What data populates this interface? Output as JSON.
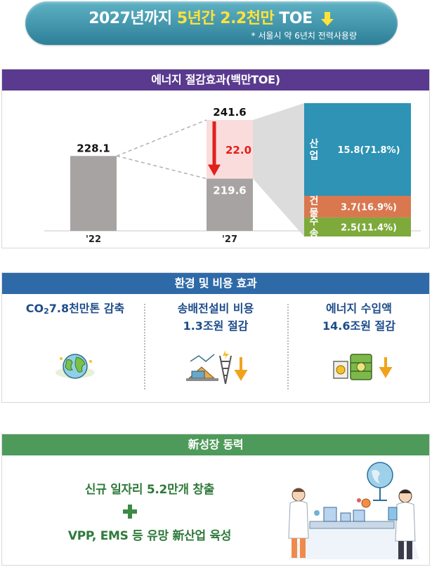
{
  "banner": {
    "title_prefix": "2027년까지",
    "title_highlight": "5년간 2.2천만",
    "title_unit": "TOE",
    "note": "* 서울시 약 6년치 전력사용량"
  },
  "section_energy": {
    "header": "에너지 절감효과(백만TOE)"
  },
  "chart_data": {
    "type": "bar",
    "title": "에너지 절감효과(백만TOE)",
    "categories": [
      "'22",
      "'27"
    ],
    "values": [
      228.1,
      219.6
    ],
    "value_labels": [
      "228.1",
      "219.6"
    ],
    "projected_total": 241.6,
    "projected_total_label": "241.6",
    "savings": 22.0,
    "savings_label": "22.0",
    "ylim": [
      0,
      260
    ],
    "breakdown": [
      {
        "sector": "산업",
        "value": 15.8,
        "label": "15.8(71.8%)",
        "color": "#2e93b5"
      },
      {
        "sector": "건물",
        "value": 3.7,
        "label": "3.7(16.9%)",
        "color": "#d9774f"
      },
      {
        "sector": "수송",
        "value": 2.5,
        "label": "2.5(11.4%)",
        "color": "#7daa3b"
      }
    ],
    "colors": {
      "bar": "#a7a3a3",
      "savings_fill": "#fbdcdc",
      "arrow": "#e0201b"
    }
  },
  "section_effects": {
    "header": "환경 및 비용 효과",
    "items": [
      {
        "line1_a": "CO",
        "line1_sub": "2",
        "line1_b": "7.8천만톤 감축",
        "line2": "",
        "icon": "globe-icon"
      },
      {
        "line1_a": "송배전설비 비용",
        "line1_sub": "",
        "line1_b": "",
        "line2": "1.3조원 절감",
        "icon": "power-grid-icon"
      },
      {
        "line1_a": "에너지 수입액",
        "line1_sub": "",
        "line1_b": "",
        "line2": "14.6조원 절감",
        "icon": "oil-barrel-icon"
      }
    ]
  },
  "section_growth": {
    "header": "新성장 동력",
    "line1": "신규 일자리 5.2만개 창출",
    "line2": "VPP, EMS 등 유망 新산업 육성",
    "illustration": "scientists-illustration"
  }
}
